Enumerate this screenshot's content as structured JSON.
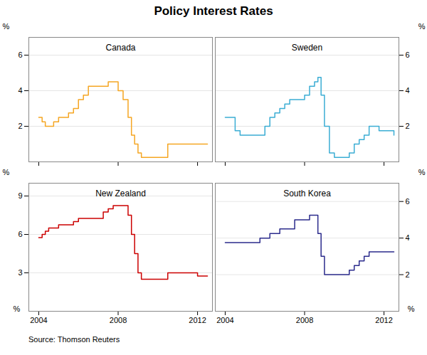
{
  "title": "Policy Interest Rates",
  "annotations": [
    "Source: Thomson Reuters"
  ],
  "chart_data": [
    {
      "type": "line",
      "line_style": "step",
      "title": "Canada",
      "ylabel": "%",
      "color": "#F5A623",
      "x": [
        2004.0,
        2004.17,
        2004.33,
        2004.5,
        2004.75,
        2005.0,
        2005.25,
        2005.5,
        2005.75,
        2006.0,
        2006.25,
        2006.5,
        2006.75,
        2007.0,
        2007.25,
        2007.5,
        2007.75,
        2008.0,
        2008.25,
        2008.5,
        2008.67,
        2008.83,
        2009.0,
        2009.17,
        2009.33,
        2009.5,
        2009.75,
        2010.0,
        2010.25,
        2010.5,
        2010.75,
        2011.0,
        2011.5,
        2012.0,
        2012.5
      ],
      "values": [
        2.5,
        2.25,
        2.0,
        2.0,
        2.25,
        2.5,
        2.5,
        2.75,
        3.0,
        3.5,
        3.75,
        4.25,
        4.25,
        4.25,
        4.25,
        4.5,
        4.5,
        4.0,
        3.5,
        2.5,
        1.5,
        1.0,
        0.5,
        0.25,
        0.25,
        0.25,
        0.25,
        0.25,
        0.25,
        1.0,
        1.0,
        1.0,
        1.0,
        1.0,
        1.0
      ],
      "xlim": [
        2003.5,
        2012.75
      ],
      "xticks": [
        2004,
        2008,
        2012
      ],
      "ylim": [
        0,
        7
      ],
      "yticks": [
        2,
        4,
        6
      ],
      "grid": true,
      "tick_labels": "y"
    },
    {
      "type": "line",
      "line_style": "step",
      "title": "Sweden",
      "ylabel": "%",
      "color": "#3BADD4",
      "x": [
        2004.0,
        2004.25,
        2004.5,
        2004.75,
        2005.0,
        2005.25,
        2005.5,
        2005.75,
        2006.0,
        2006.25,
        2006.5,
        2006.75,
        2007.0,
        2007.25,
        2007.5,
        2007.75,
        2008.0,
        2008.25,
        2008.5,
        2008.67,
        2008.83,
        2009.0,
        2009.25,
        2009.5,
        2009.75,
        2010.0,
        2010.25,
        2010.5,
        2010.75,
        2011.0,
        2011.25,
        2011.5,
        2011.75,
        2012.0,
        2012.5
      ],
      "values": [
        2.5,
        2.5,
        1.75,
        1.5,
        1.5,
        1.5,
        1.5,
        1.5,
        2.0,
        2.5,
        2.75,
        3.0,
        3.25,
        3.5,
        3.5,
        3.5,
        3.75,
        4.25,
        4.5,
        4.75,
        3.75,
        2.0,
        0.5,
        0.25,
        0.25,
        0.25,
        0.5,
        1.0,
        1.25,
        1.5,
        2.0,
        2.0,
        1.75,
        1.75,
        1.5
      ],
      "xlim": [
        2003.5,
        2012.75
      ],
      "xticks": [
        2004,
        2008,
        2012
      ],
      "ylim": [
        0,
        7
      ],
      "yticks": [
        2,
        4,
        6
      ],
      "grid": true,
      "tick_labels": "y"
    },
    {
      "type": "line",
      "line_style": "step",
      "title": "New Zealand",
      "ylabel": "%",
      "color": "#CC0000",
      "x": [
        2004.0,
        2004.17,
        2004.33,
        2004.5,
        2004.75,
        2005.0,
        2005.25,
        2005.5,
        2005.75,
        2006.0,
        2006.25,
        2006.5,
        2006.75,
        2007.0,
        2007.25,
        2007.5,
        2007.75,
        2008.0,
        2008.25,
        2008.5,
        2008.67,
        2008.83,
        2009.0,
        2009.17,
        2009.5,
        2009.75,
        2010.0,
        2010.5,
        2011.0,
        2011.5,
        2012.0,
        2012.5
      ],
      "values": [
        5.75,
        6.0,
        6.25,
        6.5,
        6.5,
        6.75,
        6.75,
        6.75,
        7.0,
        7.25,
        7.25,
        7.25,
        7.25,
        7.25,
        7.75,
        8.0,
        8.25,
        8.25,
        8.25,
        7.5,
        6.0,
        4.5,
        3.0,
        2.5,
        2.5,
        2.5,
        2.5,
        3.0,
        3.0,
        3.0,
        2.75,
        2.75
      ],
      "xlim": [
        2003.5,
        2012.75
      ],
      "xticks": [
        2004,
        2008,
        2012
      ],
      "ylim": [
        0,
        10
      ],
      "yticks": [
        3,
        6,
        9
      ],
      "grid": true
    },
    {
      "type": "line",
      "line_style": "step",
      "title": "South Korea",
      "ylabel": "%",
      "color": "#2B2B8C",
      "x": [
        2004.0,
        2004.25,
        2004.5,
        2004.75,
        2005.0,
        2005.25,
        2005.5,
        2005.75,
        2006.0,
        2006.25,
        2006.5,
        2006.75,
        2007.0,
        2007.25,
        2007.5,
        2007.75,
        2008.0,
        2008.25,
        2008.5,
        2008.67,
        2008.83,
        2009.0,
        2009.25,
        2009.5,
        2009.75,
        2010.0,
        2010.25,
        2010.5,
        2010.75,
        2011.0,
        2011.25,
        2011.5,
        2011.75,
        2012.0,
        2012.5
      ],
      "values": [
        3.75,
        3.75,
        3.75,
        3.75,
        3.75,
        3.75,
        3.75,
        4.0,
        4.0,
        4.25,
        4.25,
        4.5,
        4.5,
        4.5,
        5.0,
        5.0,
        5.0,
        5.25,
        5.25,
        4.25,
        3.0,
        2.0,
        2.0,
        2.0,
        2.0,
        2.0,
        2.25,
        2.5,
        2.75,
        3.0,
        3.25,
        3.25,
        3.25,
        3.25,
        3.25
      ],
      "xlim": [
        2003.5,
        2012.75
      ],
      "xticks": [
        2004,
        2008,
        2012
      ],
      "ylim": [
        0,
        7
      ],
      "yticks": [
        2,
        4,
        6
      ],
      "grid": true
    }
  ]
}
